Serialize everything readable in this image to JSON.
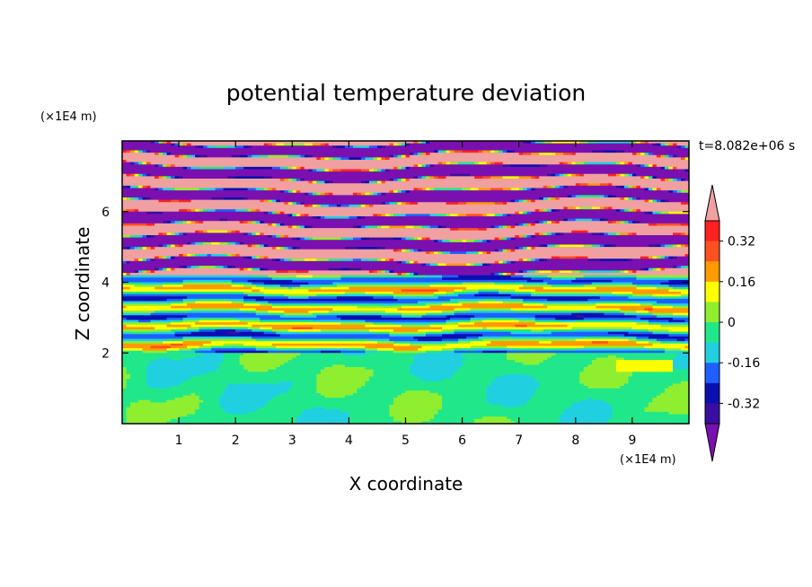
{
  "chart_data": {
    "type": "heatmap",
    "title": "potential temperature deviation",
    "xlabel": "X coordinate",
    "ylabel": "Z coordinate",
    "x_unit": "(×1E4 m)",
    "y_unit": "(×1E4 m)",
    "time_label": "t=8.082e+06 s",
    "xlim": [
      0,
      10
    ],
    "ylim": [
      0,
      8
    ],
    "x_ticks": [
      "1",
      "2",
      "3",
      "4",
      "5",
      "6",
      "7",
      "8",
      "9"
    ],
    "y_ticks": [
      "2",
      "4",
      "6"
    ],
    "x_tick_values": [
      1,
      2,
      3,
      4,
      5,
      6,
      7,
      8,
      9
    ],
    "y_tick_values": [
      2,
      4,
      6
    ],
    "colorbar": {
      "labels": [
        "0.32",
        "0.16",
        "0",
        "-0.16",
        "-0.32"
      ],
      "label_values": [
        0.32,
        0.16,
        0,
        -0.16,
        -0.32
      ],
      "levels_top_to_bottom": [
        0.4,
        0.32,
        0.24,
        0.16,
        0.08,
        0,
        -0.08,
        -0.16,
        -0.24,
        -0.32,
        -0.4
      ],
      "colors_top_to_bottom": [
        "#f0a0a0",
        "#ff2020",
        "#ff5020",
        "#ff9a00",
        "#ffff00",
        "#90ee30",
        "#20e88a",
        "#20d0e0",
        "#1e60ff",
        "#0a10b0",
        "#3a0ea0",
        "#7a10b0"
      ],
      "extend": "both"
    },
    "regions": [
      {
        "description": "lower layer z 0-2: near-zero values",
        "z_range": [
          0,
          2
        ],
        "dominant_color": "#20e88a",
        "secondary_color": "#90ee30"
      },
      {
        "description": "mid layer z 2-4.2: mixed bands",
        "z_range": [
          2,
          4.2
        ],
        "dominant_color": "#20e88a"
      },
      {
        "description": "upper layer z 4.2-8: alternating strong bands",
        "z_range": [
          4.2,
          8
        ],
        "dominant_color": "#7a10b0",
        "secondary_color": "#f0a0a0"
      }
    ]
  }
}
